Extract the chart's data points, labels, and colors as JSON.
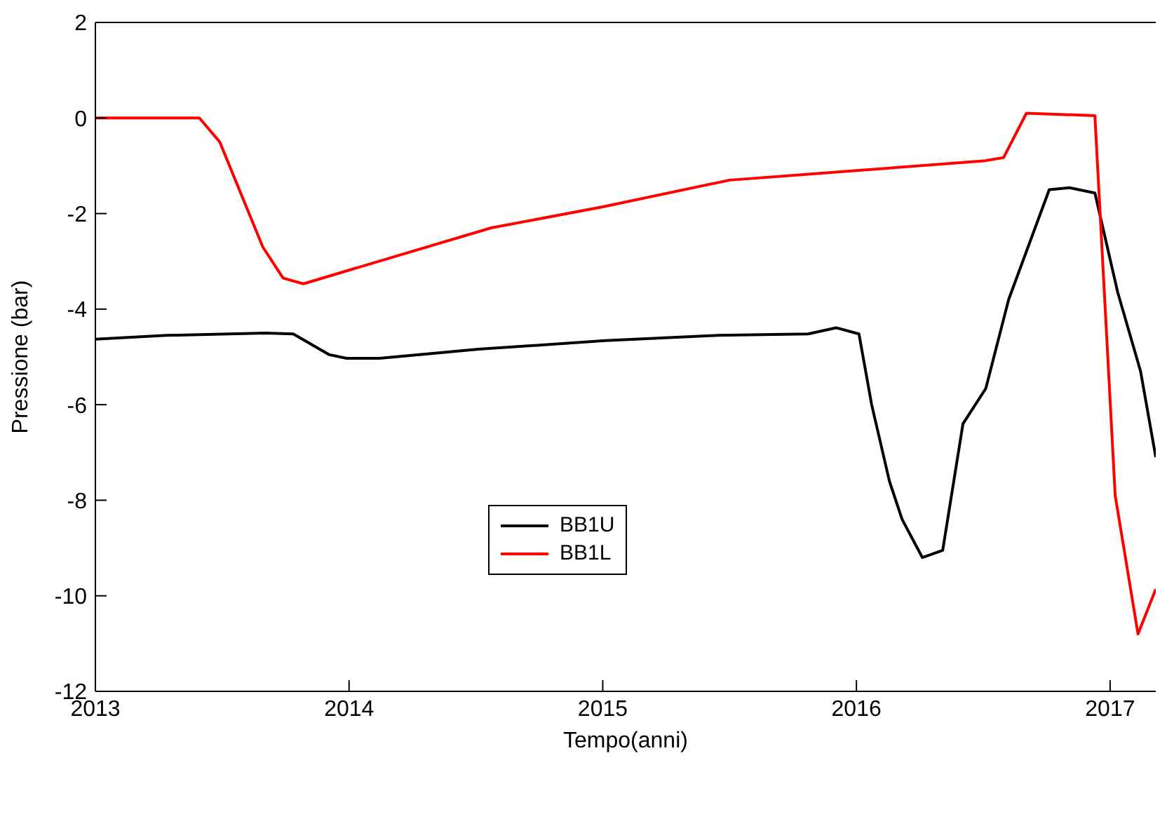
{
  "chart_data": {
    "type": "line",
    "xlabel": "Tempo(anni)",
    "ylabel": "Pressione (bar)",
    "xlim": [
      2013,
      2017.18
    ],
    "xticks": [
      2013,
      2014,
      2015,
      2016,
      2017
    ],
    "ylim": [
      -12,
      2
    ],
    "yticks": [
      -12,
      -10,
      -8,
      -6,
      -4,
      -2,
      0,
      2
    ],
    "grid": false,
    "legend": "left",
    "marker": "none",
    "line_style": "solid",
    "series": [
      {
        "name": "BB1U",
        "color": "#000000",
        "x": [
          2013,
          2013.28,
          2013.67,
          2013.78,
          2013.92,
          2013.99,
          2014.12,
          2014.51,
          2015.01,
          2015.45,
          2015.81,
          2015.92,
          2016.01,
          2016.06,
          2016.13,
          2016.18,
          2016.26,
          2016.34,
          2016.42,
          2016.51,
          2016.6,
          2016.76,
          2016.84,
          2016.94,
          2017.03,
          2017.12,
          2017.18
        ],
        "values": [
          -4.63,
          -4.55,
          -4.5,
          -4.52,
          -4.95,
          -5.03,
          -5.03,
          -4.84,
          -4.66,
          -4.55,
          -4.52,
          -4.39,
          -4.52,
          -6.0,
          -7.6,
          -8.4,
          -9.2,
          -9.05,
          -6.4,
          -5.66,
          -3.8,
          -1.5,
          -1.46,
          -1.57,
          -3.65,
          -5.3,
          -7.1
        ]
      },
      {
        "name": "BB1L",
        "color": "#ff0000",
        "x": [
          2013,
          2013.41,
          2013.49,
          2013.66,
          2013.74,
          2013.82,
          2014.56,
          2015.0,
          2015.5,
          2016.0,
          2016.5,
          2016.58,
          2016.67,
          2016.94,
          2017.02,
          2017.11,
          2017.18
        ],
        "values": [
          0,
          0,
          -0.5,
          -2.7,
          -3.35,
          -3.47,
          -2.3,
          -1.86,
          -1.3,
          -1.1,
          -0.9,
          -0.83,
          0.1,
          0.05,
          -7.9,
          -10.8,
          -9.86
        ]
      }
    ]
  }
}
